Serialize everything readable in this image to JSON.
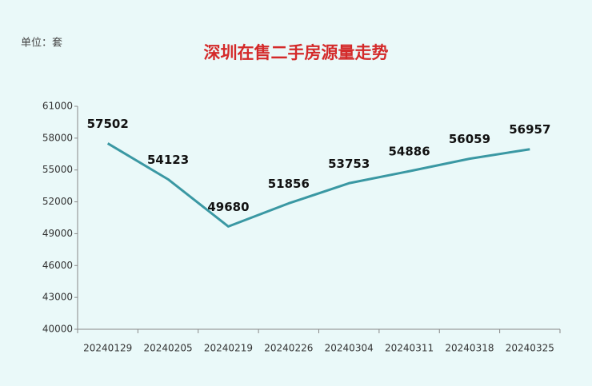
{
  "chart_data": {
    "type": "line",
    "title": "深圳在售二手房源量走势",
    "unit_label": "单位：套",
    "categories": [
      "20240129",
      "20240205",
      "20240219",
      "20240226",
      "20240304",
      "20240311",
      "20240318",
      "20240325"
    ],
    "values": [
      57502,
      54123,
      49680,
      51856,
      53753,
      54886,
      56059,
      56957
    ],
    "color": "#3a98a3",
    "title_color": "#d42a2a",
    "ylim": [
      40000,
      61000
    ],
    "yticks": [
      40000,
      43000,
      46000,
      49000,
      52000,
      55000,
      58000,
      61000
    ],
    "grid": false
  }
}
